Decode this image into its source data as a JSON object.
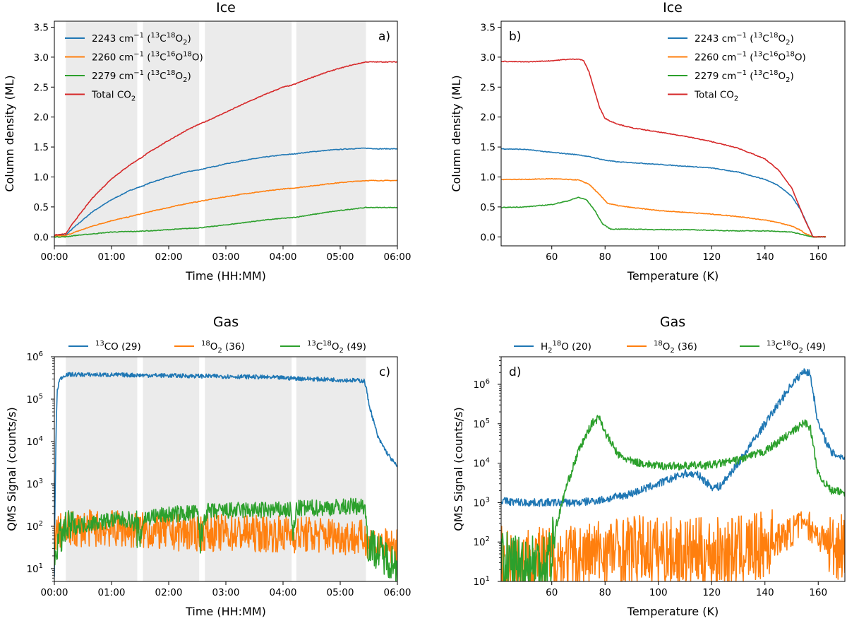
{
  "figure": "Ice and gas phase measurements",
  "colors": {
    "blue": "#1f77b4",
    "orange": "#ff7f0e",
    "green": "#2ca02c",
    "red": "#d62728",
    "shade": "#ebebeb"
  },
  "chart_data": [
    {
      "id": "a",
      "type": "line",
      "title": "Ice",
      "panel_label": "a)",
      "xlabel": "Time (HH:MM)",
      "ylabel": "Column density (ML)",
      "xlim": [
        0,
        360
      ],
      "ylim": [
        -0.15,
        3.6
      ],
      "yscale": "linear",
      "xticks": [
        0,
        60,
        120,
        180,
        240,
        300,
        360
      ],
      "xtick_labels": [
        "00:00",
        "01:00",
        "02:00",
        "03:00",
        "04:00",
        "05:00",
        "06:00"
      ],
      "yticks": [
        0,
        0.5,
        1.0,
        1.5,
        2.0,
        2.5,
        3.0,
        3.5
      ],
      "ytick_labels": [
        "0.0",
        "0.5",
        "1.0",
        "1.5",
        "2.0",
        "2.5",
        "3.0",
        "3.5"
      ],
      "shaded_intervals": [
        [
          12,
          87
        ],
        [
          93,
          152
        ],
        [
          158,
          249
        ],
        [
          254,
          327
        ]
      ],
      "legend_position": "top-left",
      "series": [
        {
          "name_parts": [
            "2243 cm",
            "−1",
            " (",
            "13",
            "C",
            "18",
            "O",
            "2",
            ")"
          ],
          "color": "blue",
          "x": [
            0,
            12,
            20,
            40,
            60,
            80,
            87,
            93,
            100,
            120,
            140,
            152,
            158,
            180,
            200,
            220,
            240,
            249,
            254,
            270,
            290,
            310,
            327,
            340,
            360
          ],
          "y": [
            0.02,
            0.03,
            0.15,
            0.42,
            0.62,
            0.78,
            0.82,
            0.85,
            0.9,
            1.0,
            1.09,
            1.12,
            1.14,
            1.22,
            1.28,
            1.33,
            1.37,
            1.38,
            1.39,
            1.42,
            1.45,
            1.47,
            1.48,
            1.47,
            1.47
          ]
        },
        {
          "name_parts": [
            "2260 cm",
            "−1",
            " (",
            "13",
            "C",
            "16",
            "O",
            "18",
            "O)"
          ],
          "color": "orange",
          "x": [
            0,
            12,
            20,
            40,
            60,
            80,
            87,
            93,
            100,
            120,
            140,
            152,
            158,
            180,
            200,
            220,
            240,
            249,
            254,
            270,
            290,
            310,
            327,
            340,
            360
          ],
          "y": [
            0.01,
            0.02,
            0.07,
            0.18,
            0.27,
            0.34,
            0.37,
            0.39,
            0.42,
            0.49,
            0.56,
            0.59,
            0.61,
            0.67,
            0.72,
            0.76,
            0.8,
            0.81,
            0.82,
            0.85,
            0.89,
            0.92,
            0.94,
            0.94,
            0.94
          ]
        },
        {
          "name_parts": [
            "2279 cm",
            "−1",
            " (",
            "13",
            "C",
            "18",
            "O",
            "2",
            ")"
          ],
          "color": "green",
          "x": [
            0,
            12,
            20,
            40,
            60,
            80,
            87,
            93,
            100,
            120,
            140,
            152,
            158,
            180,
            200,
            220,
            240,
            249,
            254,
            270,
            290,
            310,
            327,
            340,
            360
          ],
          "y": [
            0.0,
            0.0,
            0.02,
            0.05,
            0.08,
            0.09,
            0.09,
            0.1,
            0.1,
            0.12,
            0.14,
            0.15,
            0.16,
            0.2,
            0.24,
            0.28,
            0.31,
            0.32,
            0.33,
            0.37,
            0.42,
            0.46,
            0.49,
            0.49,
            0.49
          ]
        },
        {
          "name_parts": [
            "Total CO",
            "2"
          ],
          "color": "red",
          "x": [
            0,
            12,
            20,
            40,
            60,
            80,
            87,
            93,
            100,
            120,
            140,
            152,
            158,
            180,
            200,
            220,
            240,
            249,
            254,
            270,
            290,
            310,
            327,
            340,
            360
          ],
          "y": [
            0.03,
            0.05,
            0.24,
            0.65,
            0.97,
            1.21,
            1.28,
            1.34,
            1.42,
            1.61,
            1.79,
            1.88,
            1.92,
            2.08,
            2.23,
            2.37,
            2.5,
            2.53,
            2.56,
            2.66,
            2.77,
            2.86,
            2.92,
            2.92,
            2.92
          ]
        }
      ]
    },
    {
      "id": "b",
      "type": "line",
      "title": "Ice",
      "panel_label": "b)",
      "xlabel": "Temperature (K)",
      "ylabel": "Column density (ML)",
      "xlim": [
        41,
        170
      ],
      "ylim": [
        -0.15,
        3.6
      ],
      "yscale": "linear",
      "xticks": [
        60,
        80,
        100,
        120,
        140,
        160
      ],
      "xtick_labels": [
        "60",
        "80",
        "100",
        "120",
        "140",
        "160"
      ],
      "yticks": [
        0,
        0.5,
        1.0,
        1.5,
        2.0,
        2.5,
        3.0,
        3.5
      ],
      "ytick_labels": [
        "0.0",
        "0.5",
        "1.0",
        "1.5",
        "2.0",
        "2.5",
        "3.0",
        "3.5"
      ],
      "legend_position": "top-right",
      "series": [
        {
          "name_parts": [
            "2243 cm",
            "−1",
            " (",
            "13",
            "C",
            "18",
            "O",
            "2",
            ")"
          ],
          "color": "blue",
          "x": [
            41,
            50,
            60,
            70,
            75,
            80,
            85,
            90,
            100,
            110,
            120,
            130,
            140,
            145,
            150,
            153,
            155,
            157,
            158,
            163
          ],
          "y": [
            1.47,
            1.46,
            1.41,
            1.37,
            1.33,
            1.28,
            1.25,
            1.24,
            1.21,
            1.18,
            1.15,
            1.08,
            0.96,
            0.86,
            0.68,
            0.48,
            0.3,
            0.1,
            0.0,
            0.0
          ]
        },
        {
          "name_parts": [
            "2260 cm",
            "−1",
            " (",
            "13",
            "C",
            "16",
            "O",
            "18",
            "O)"
          ],
          "color": "orange",
          "x": [
            41,
            50,
            60,
            70,
            74,
            78,
            81,
            85,
            90,
            100,
            110,
            120,
            130,
            140,
            145,
            150,
            153,
            155,
            157,
            158,
            163
          ],
          "y": [
            0.96,
            0.96,
            0.97,
            0.95,
            0.88,
            0.7,
            0.56,
            0.52,
            0.49,
            0.44,
            0.41,
            0.38,
            0.34,
            0.28,
            0.24,
            0.18,
            0.12,
            0.06,
            0.02,
            0.0,
            0.0
          ]
        },
        {
          "name_parts": [
            "2279 cm",
            "−1",
            " (",
            "13",
            "C",
            "18",
            "O",
            "2",
            ")"
          ],
          "color": "green",
          "x": [
            41,
            50,
            60,
            66,
            70,
            73,
            76,
            79,
            82,
            90,
            100,
            110,
            120,
            130,
            140,
            150,
            155,
            158,
            163
          ],
          "y": [
            0.49,
            0.5,
            0.54,
            0.6,
            0.66,
            0.62,
            0.45,
            0.22,
            0.13,
            0.13,
            0.12,
            0.12,
            0.11,
            0.1,
            0.1,
            0.08,
            0.03,
            0.0,
            0.0
          ]
        },
        {
          "name_parts": [
            "Total CO",
            "2"
          ],
          "color": "red",
          "x": [
            41,
            50,
            60,
            65,
            70,
            72,
            74,
            76,
            78,
            80,
            82,
            85,
            90,
            100,
            110,
            120,
            130,
            140,
            145,
            150,
            153,
            155,
            157,
            158,
            163
          ],
          "y": [
            2.93,
            2.92,
            2.94,
            2.96,
            2.97,
            2.94,
            2.75,
            2.45,
            2.15,
            1.98,
            1.93,
            1.88,
            1.82,
            1.75,
            1.68,
            1.59,
            1.48,
            1.3,
            1.12,
            0.82,
            0.5,
            0.28,
            0.1,
            0.0,
            0.0
          ]
        }
      ]
    },
    {
      "id": "c",
      "type": "line",
      "title": "Gas",
      "panel_label": "c)",
      "xlabel": "Time (HH:MM)",
      "ylabel": "QMS Signal (counts/s)",
      "xlim": [
        0,
        360
      ],
      "ylim": [
        5,
        1000000
      ],
      "yscale": "log",
      "xticks": [
        0,
        60,
        120,
        180,
        240,
        300,
        360
      ],
      "xtick_labels": [
        "00:00",
        "01:00",
        "02:00",
        "03:00",
        "04:00",
        "05:00",
        "06:00"
      ],
      "yticks": [
        10,
        100,
        1000,
        10000,
        100000,
        1000000
      ],
      "ytick_base": "10",
      "ytick_exponents": [
        "1",
        "2",
        "3",
        "4",
        "5",
        "6"
      ],
      "shaded_intervals": [
        [
          12,
          87
        ],
        [
          93,
          152
        ],
        [
          158,
          249
        ],
        [
          254,
          327
        ]
      ],
      "legend_position": "top, outside",
      "noise": 0.05,
      "series": [
        {
          "name_parts": [
            "13",
            "CO (29)"
          ],
          "sup_mask": [
            true,
            false
          ],
          "color": "blue",
          "x": [
            0,
            1,
            2,
            3,
            5,
            8,
            12,
            30,
            60,
            90,
            120,
            150,
            180,
            210,
            240,
            270,
            300,
            320,
            325,
            327,
            330,
            335,
            340,
            350,
            360
          ],
          "y": [
            10,
            1000,
            30000,
            150000,
            270000,
            330000,
            380000,
            380000,
            375000,
            368000,
            360000,
            352000,
            345000,
            335000,
            318000,
            300000,
            285000,
            275000,
            272000,
            200000,
            80000,
            30000,
            12000,
            5000,
            2500
          ]
        },
        {
          "name_parts": [
            "18",
            "O",
            "2",
            " (36)"
          ],
          "sup_mask": [
            true,
            false,
            "sub",
            false
          ],
          "color": "orange",
          "x": [
            0,
            12,
            30,
            60,
            90,
            120,
            150,
            180,
            210,
            240,
            270,
            300,
            327,
            340,
            360
          ],
          "y": [
            70,
            80,
            90,
            88,
            80,
            72,
            70,
            70,
            68,
            66,
            63,
            60,
            50,
            35,
            30
          ]
        },
        {
          "name_parts": [
            "13",
            "C",
            "18",
            "O",
            "2",
            " (49)"
          ],
          "color": "green",
          "x": [
            0,
            3,
            8,
            12,
            20,
            40,
            60,
            80,
            86,
            89,
            92,
            95,
            120,
            150,
            154,
            157,
            160,
            200,
            248,
            251,
            254,
            290,
            320,
            326,
            329,
            340,
            360
          ],
          "y": [
            20,
            40,
            60,
            80,
            100,
            120,
            140,
            145,
            100,
            50,
            100,
            160,
            190,
            210,
            40,
            150,
            220,
            240,
            240,
            50,
            260,
            280,
            300,
            300,
            40,
            25,
            12
          ]
        }
      ]
    },
    {
      "id": "d",
      "type": "line",
      "title": "Gas",
      "panel_label": "d)",
      "xlabel": "Temperature (K)",
      "ylabel": "QMS Signal (counts/s)",
      "xlim": [
        41,
        170
      ],
      "ylim": [
        10,
        5000000
      ],
      "yscale": "log",
      "xticks": [
        60,
        80,
        100,
        120,
        140,
        160
      ],
      "xtick_labels": [
        "60",
        "80",
        "100",
        "120",
        "140",
        "160"
      ],
      "yticks": [
        10,
        100,
        1000,
        10000,
        100000,
        1000000
      ],
      "ytick_base": "10",
      "ytick_exponents": [
        "1",
        "2",
        "3",
        "4",
        "5",
        "6"
      ],
      "legend_position": "top, outside",
      "noise": 0.1,
      "series": [
        {
          "name_parts": [
            "H",
            "2",
            "18",
            "O (20)"
          ],
          "color": "blue",
          "x": [
            41,
            50,
            60,
            70,
            80,
            90,
            100,
            110,
            115,
            120,
            123,
            130,
            140,
            150,
            155,
            157,
            160,
            165,
            170
          ],
          "y": [
            1100,
            1000,
            1000,
            1000,
            1200,
            1700,
            3000,
            5500,
            5000,
            2500,
            2500,
            10000,
            100000,
            1000000,
            2300000,
            1800000,
            100000,
            18000,
            14000
          ]
        },
        {
          "name_parts": [
            "18",
            "O",
            "2",
            " (36)"
          ],
          "color": "orange",
          "x": [
            41,
            50,
            60,
            70,
            80,
            90,
            100,
            110,
            120,
            130,
            140,
            150,
            155,
            160,
            165,
            170
          ],
          "y": [
            35,
            35,
            35,
            40,
            60,
            65,
            60,
            55,
            55,
            60,
            80,
            180,
            350,
            150,
            80,
            90
          ]
        },
        {
          "name_parts": [
            "13",
            "C",
            "18",
            "O",
            "2",
            " (49)"
          ],
          "color": "green",
          "x": [
            41,
            50,
            58,
            60,
            62,
            65,
            70,
            75,
            78,
            80,
            85,
            90,
            100,
            110,
            120,
            130,
            140,
            150,
            155,
            157,
            160,
            165,
            170
          ],
          "y": [
            25,
            25,
            30,
            60,
            300,
            2000,
            20000,
            100000,
            150000,
            60000,
            16000,
            11000,
            8500,
            8500,
            9000,
            12000,
            20000,
            60000,
            110000,
            80000,
            5000,
            2000,
            1800
          ]
        }
      ]
    }
  ]
}
